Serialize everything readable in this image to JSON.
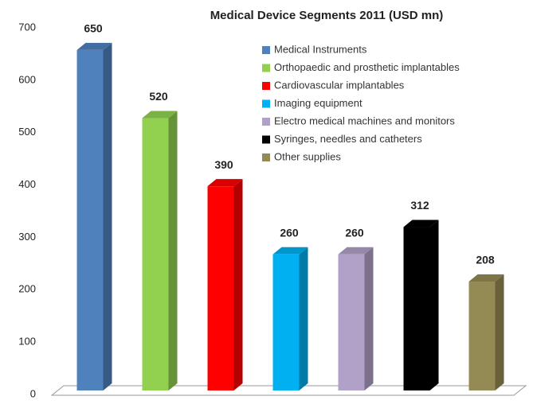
{
  "chart_data": {
    "type": "bar",
    "title": "Medical Device Segments 2011 (USD mn)",
    "series": [
      {
        "name": "Medical Instruments",
        "color": "#4f81bd",
        "values": [
          650
        ]
      },
      {
        "name": "Orthopaedic and prosthetic implantables",
        "color": "#92d050",
        "values": [
          520
        ]
      },
      {
        "name": "Cardiovascular implantables",
        "color": "#ff0000",
        "values": [
          390
        ]
      },
      {
        "name": "Imaging equipment",
        "color": "#00b0f0",
        "values": [
          260
        ]
      },
      {
        "name": "Electro medical machines and monitors",
        "color": "#b1a0c7",
        "values": [
          260
        ]
      },
      {
        "name": "Syringes, needles and catheters",
        "color": "#000000",
        "values": [
          312
        ]
      },
      {
        "name": "Other supplies",
        "color": "#948a54",
        "values": [
          208
        ]
      }
    ],
    "ylim": [
      0,
      700
    ],
    "yticks": [
      0,
      100,
      200,
      300,
      400,
      500,
      600,
      700
    ],
    "grid": false,
    "legend": "top-right"
  }
}
